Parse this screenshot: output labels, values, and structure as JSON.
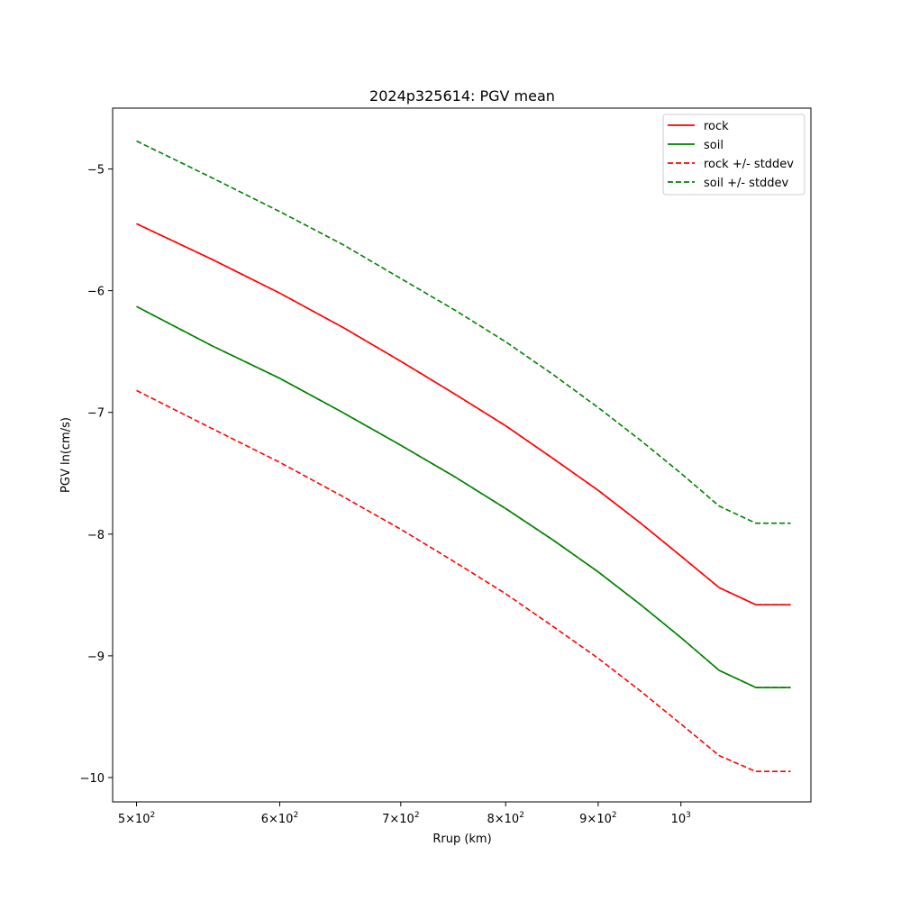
{
  "chart_data": {
    "type": "line",
    "title": "2024p325614: PGV mean",
    "xlabel": "Rrup (km)",
    "ylabel": "PGV ln(cm/s)",
    "xscale": "log",
    "xlim": [
      485,
      1180
    ],
    "ylim": [
      -10.2,
      -4.5
    ],
    "grid": false,
    "legend_position": "top-right",
    "x_ticks": [
      {
        "value": 500,
        "mantissa": "5",
        "base": "10",
        "exp": "2"
      },
      {
        "value": 600,
        "mantissa": "6",
        "base": "10",
        "exp": "2"
      },
      {
        "value": 700,
        "mantissa": "7",
        "base": "10",
        "exp": "2"
      },
      {
        "value": 800,
        "mantissa": "8",
        "base": "10",
        "exp": "2"
      },
      {
        "value": 900,
        "mantissa": "9",
        "base": "10",
        "exp": "2"
      },
      {
        "value": 1000,
        "mantissa": "",
        "base": "10",
        "exp": "3"
      }
    ],
    "y_ticks": [
      {
        "value": -5,
        "label": "−5"
      },
      {
        "value": -6,
        "label": "−6"
      },
      {
        "value": -7,
        "label": "−7"
      },
      {
        "value": -8,
        "label": "−8"
      },
      {
        "value": -9,
        "label": "−9"
      },
      {
        "value": -10,
        "label": "−10"
      }
    ],
    "x": [
      500,
      550,
      600,
      650,
      700,
      750,
      800,
      850,
      900,
      950,
      1000,
      1050,
      1100,
      1150
    ],
    "series": [
      {
        "name": "rock",
        "color": "#ff0000",
        "dash": "solid",
        "values": [
          -5.45,
          -5.74,
          -6.02,
          -6.3,
          -6.58,
          -6.85,
          -7.11,
          -7.38,
          -7.64,
          -7.91,
          -8.18,
          -8.44,
          -8.58,
          -8.58
        ]
      },
      {
        "name": "soil",
        "color": "#008000",
        "dash": "solid",
        "values": [
          -6.13,
          -6.45,
          -6.72,
          -7.0,
          -7.27,
          -7.53,
          -7.79,
          -8.05,
          -8.31,
          -8.58,
          -8.85,
          -9.12,
          -9.26,
          -9.26
        ]
      },
      {
        "name": "rock +/- stddev",
        "color": "#ff0000",
        "dash": "dashed",
        "values": [
          -5.45,
          -5.74,
          -6.02,
          -6.3,
          -6.58,
          -6.85,
          -7.11,
          -7.38,
          -7.64,
          -7.91,
          -8.18,
          -8.44,
          -8.58,
          -8.58
        ]
      },
      {
        "name": "rock +/- stddev",
        "color": "#ff0000",
        "dash": "dashed",
        "values": [
          -6.82,
          -7.13,
          -7.41,
          -7.69,
          -7.96,
          -8.23,
          -8.49,
          -8.76,
          -9.02,
          -9.29,
          -9.56,
          -9.82,
          -9.95,
          -9.95
        ]
      },
      {
        "name": "soil +/- stddev",
        "color": "#008000",
        "dash": "dashed",
        "values": [
          -4.77,
          -5.07,
          -5.35,
          -5.62,
          -5.9,
          -6.16,
          -6.42,
          -6.69,
          -6.96,
          -7.23,
          -7.5,
          -7.77,
          -7.91,
          -7.91
        ]
      },
      {
        "name": "soil +/- stddev",
        "color": "#008000",
        "dash": "dashed",
        "values": [
          -6.13,
          -6.45,
          -6.72,
          -7.0,
          -7.27,
          -7.53,
          -7.79,
          -8.05,
          -8.31,
          -8.58,
          -8.85,
          -9.12,
          -9.26,
          -9.26
        ]
      }
    ],
    "legend": [
      {
        "label": "rock",
        "color": "#ff0000",
        "dash": "solid"
      },
      {
        "label": "soil",
        "color": "#008000",
        "dash": "solid"
      },
      {
        "label": "rock +/- stddev",
        "color": "#ff0000",
        "dash": "dashed"
      },
      {
        "label": "soil +/- stddev",
        "color": "#008000",
        "dash": "dashed"
      }
    ]
  }
}
